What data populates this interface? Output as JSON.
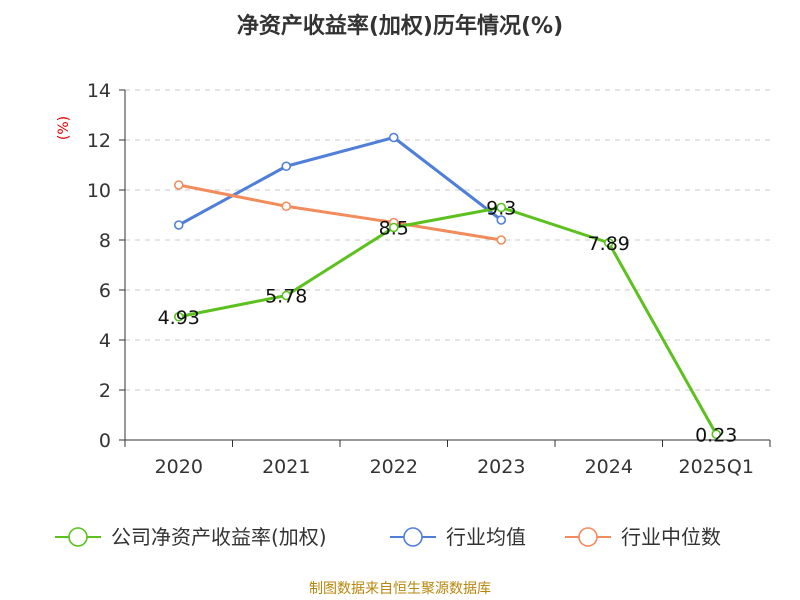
{
  "chart_data": {
    "type": "line",
    "title": "净资产收益率(加权)历年情况(%)",
    "ylabel": "(%)",
    "xlabel": "",
    "categories": [
      "2020",
      "2021",
      "2022",
      "2023",
      "2024",
      "2025Q1"
    ],
    "ylim": [
      0,
      14
    ],
    "yticks": [
      0,
      2,
      4,
      6,
      8,
      10,
      12,
      14
    ],
    "grid": true,
    "legend_position": "bottom",
    "series": [
      {
        "name": "公司净资产收益率(加权)",
        "color": "#5cc11f",
        "values": [
          4.93,
          5.78,
          8.5,
          9.3,
          7.89,
          0.23
        ],
        "labels": [
          "4.93",
          "5.78",
          "8.5",
          "9.3",
          "7.89",
          "0.23"
        ]
      },
      {
        "name": "行业均值",
        "color": "#4f7fd8",
        "values": [
          8.6,
          10.95,
          12.1,
          8.8,
          null,
          null
        ]
      },
      {
        "name": "行业中位数",
        "color": "#f28c5c",
        "values": [
          10.2,
          9.35,
          8.7,
          8.0,
          null,
          null
        ]
      }
    ],
    "source": "制图数据来自恒生聚源数据库"
  }
}
